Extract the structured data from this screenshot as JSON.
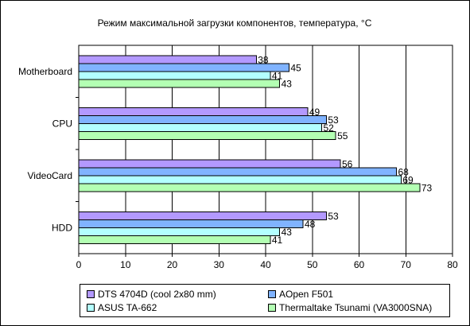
{
  "chart_data": {
    "type": "bar",
    "orientation": "horizontal",
    "title": "Режим максимальной загрузки компонентов, температура, °С",
    "categories": [
      "Motherboard",
      "CPU",
      "VideoCard",
      "HDD"
    ],
    "series": [
      {
        "name": "DTS 4704D (cool 2x80 mm)",
        "color": "#b399ff",
        "values": [
          38,
          49,
          56,
          53
        ]
      },
      {
        "name": "AOpen F501",
        "color": "#80b3ff",
        "values": [
          45,
          53,
          68,
          48
        ]
      },
      {
        "name": "ASUS TA-662",
        "color": "#b3ffff",
        "values": [
          41,
          52,
          69,
          43
        ]
      },
      {
        "name": "Thermaltake Tsunami (VA3000SNA)",
        "color": "#b3ffb3",
        "values": [
          43,
          55,
          73,
          41
        ]
      }
    ],
    "xlim": [
      0,
      80
    ],
    "xticks": [
      0,
      10,
      20,
      30,
      40,
      50,
      60,
      70,
      80
    ],
    "grid": true,
    "legend_position": "bottom"
  }
}
